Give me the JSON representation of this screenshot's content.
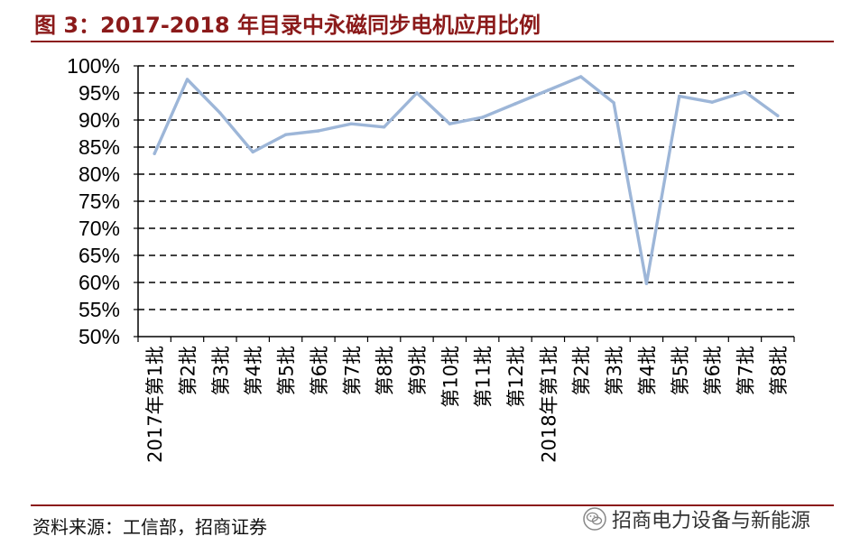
{
  "header": {
    "title": "图 3：2017-2018 年目录中永磁同步电机应用比例"
  },
  "footer": {
    "source": "资料来源：工信部，招商证券",
    "watermark": "招商电力设备与新能源",
    "watermark_icon": "wechat-icon"
  },
  "colors": {
    "title": "#8b1a1a",
    "line": "#9db6d8",
    "grid": "#000000"
  },
  "chart_data": {
    "type": "line",
    "title": "",
    "xlabel": "",
    "ylabel": "",
    "ylim": [
      0.5,
      1.0
    ],
    "y_ticks": [
      "100%",
      "95%",
      "90%",
      "85%",
      "80%",
      "75%",
      "70%",
      "65%",
      "60%",
      "55%",
      "50%"
    ],
    "y_tick_values": [
      1.0,
      0.95,
      0.9,
      0.85,
      0.8,
      0.75,
      0.7,
      0.65,
      0.6,
      0.55,
      0.5
    ],
    "grid": "horizontal dashed",
    "legend": "none",
    "categories": [
      "2017年第1批",
      "第2批",
      "第3批",
      "第4批",
      "第5批",
      "第6批",
      "第7批",
      "第8批",
      "第9批",
      "第10批",
      "第11批",
      "第12批",
      "2018年第1批",
      "第2批",
      "第3批",
      "第4批",
      "第5批",
      "第6批",
      "第7批",
      "第8批"
    ],
    "series": [
      {
        "values": [
          0.838,
          0.975,
          0.913,
          0.841,
          0.873,
          0.88,
          0.893,
          0.887,
          0.95,
          0.893,
          0.905,
          0.93,
          0.955,
          0.98,
          0.932,
          0.598,
          0.944,
          0.933,
          0.952,
          0.908
        ]
      }
    ]
  }
}
